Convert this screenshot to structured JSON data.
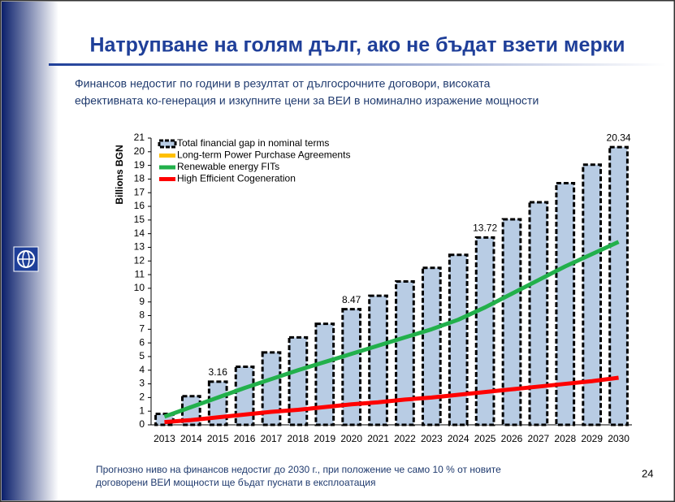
{
  "slide": {
    "title": "Натрупване на голям дълг, ако не бъдат взети мерки",
    "subtitle": [
      "Финансов недостиг по години в резултат от дългосрочните договори, високата",
      "ефективната ко-генерация и изкупните цени за ВЕИ  в номинално изражение мощности"
    ],
    "footnote": [
      "Прогнозно ниво на финансов недостиг до 2030 г., при положение че само 10 % от новите",
      "договорени ВЕИ мощности ще бъдат пуснати в експлоатация"
    ],
    "page_number": "24"
  },
  "chart_data": {
    "type": "bar_line",
    "y_label": "Billions BGN",
    "categories": [
      "2013",
      "2014",
      "2015",
      "2016",
      "2017",
      "2018",
      "2019",
      "2020",
      "2021",
      "2022",
      "2023",
      "2024",
      "2025",
      "2026",
      "2027",
      "2028",
      "2029",
      "2030"
    ],
    "series": [
      {
        "name": "Total financial gap in nominal terms",
        "kind": "bar",
        "color": "#b8cce4",
        "values": [
          0.8,
          2.1,
          3.16,
          4.25,
          5.3,
          6.4,
          7.4,
          8.47,
          9.45,
          10.5,
          11.5,
          12.45,
          13.72,
          15.05,
          16.3,
          17.7,
          19.05,
          20.34
        ],
        "value_labels": [
          null,
          null,
          "3.16",
          null,
          null,
          null,
          null,
          "8.47",
          null,
          null,
          null,
          null,
          "13.72",
          null,
          null,
          null,
          null,
          "20.34"
        ]
      },
      {
        "name": "Long-term Power Purchase Agreements",
        "kind": "line",
        "color": "#ffc000",
        "values": [
          null,
          null,
          null,
          null,
          null,
          null,
          null,
          null,
          null,
          null,
          null,
          null,
          null,
          null,
          null,
          null,
          null,
          null
        ]
      },
      {
        "name": "Renewable energy FITs",
        "kind": "line",
        "color": "#22b04b",
        "values": [
          0.6,
          1.3,
          2.0,
          2.7,
          3.35,
          4.0,
          4.6,
          5.2,
          5.8,
          6.4,
          7.0,
          7.7,
          8.6,
          9.6,
          10.6,
          11.6,
          12.5,
          13.4
        ]
      },
      {
        "name": "High Efficient Cogeneration",
        "kind": "line",
        "color": "#ff0000",
        "values": [
          0.2,
          0.35,
          0.55,
          0.75,
          0.95,
          1.1,
          1.3,
          1.5,
          1.65,
          1.85,
          2.0,
          2.2,
          2.4,
          2.6,
          2.8,
          3.0,
          3.2,
          3.45
        ]
      }
    ],
    "ylim": [
      0,
      21
    ],
    "yticks": [
      0,
      1,
      2,
      3,
      4,
      5,
      6,
      7,
      8,
      9,
      10,
      11,
      12,
      13,
      14,
      15,
      16,
      17,
      18,
      19,
      20,
      21
    ],
    "legend": "top-left"
  }
}
